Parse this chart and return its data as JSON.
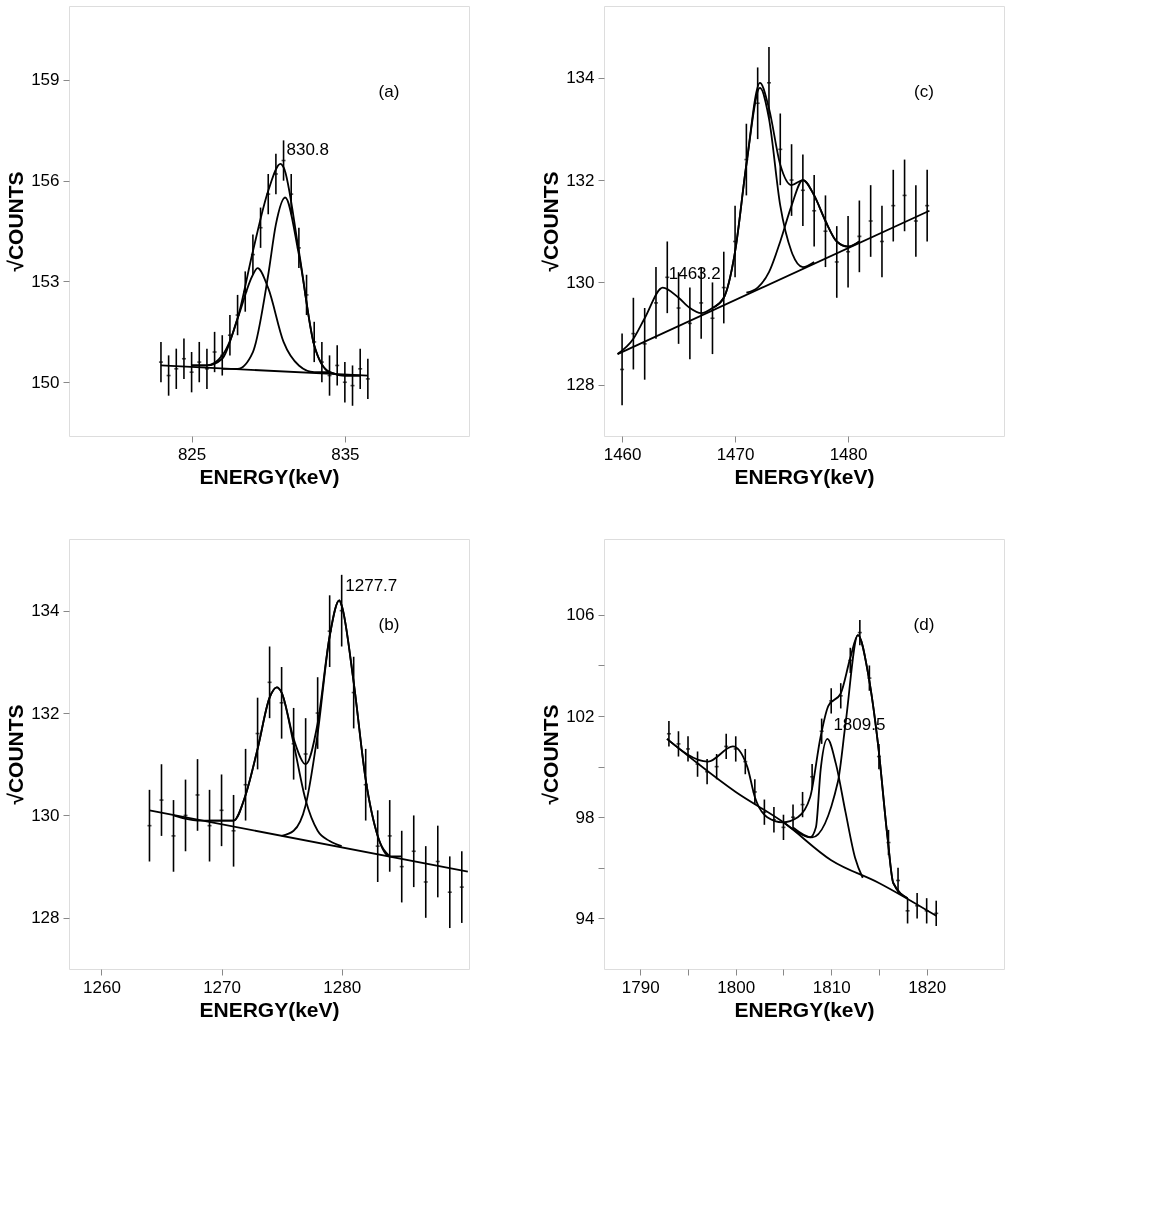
{
  "chart_data": [
    {
      "type": "line",
      "xlabel": "ENERGY(keV)",
      "ylabel": "√COUNTS",
      "xlim": [
        817.0,
        843.1
      ],
      "ylim": [
        148.4,
        161.2
      ],
      "xticks": [
        825,
        835
      ],
      "yticks": [
        150,
        153,
        156,
        159
      ],
      "grid": false,
      "line_style": "solid",
      "annotations": [
        "(a)",
        {
          "text": "830.8",
          "x": 830.8,
          "y": 156.5
        }
      ],
      "series": [
        {
          "type": "scatter",
          "color": "#000000",
          "x": [
            823,
            823.5,
            824,
            824.5,
            825,
            825.5,
            826,
            826.5,
            827,
            827.5,
            828,
            828.5,
            829,
            829.5,
            830,
            830.5,
            831,
            831.5,
            832,
            832.5,
            833,
            833.5,
            834,
            834.5,
            835,
            835.5,
            836,
            836.5
          ],
          "values": [
            150.6,
            150.2,
            150.4,
            150.7,
            150.3,
            150.6,
            150.4,
            150.9,
            150.8,
            151.4,
            152.0,
            152.7,
            153.8,
            154.6,
            155.6,
            156.2,
            156.6,
            155.6,
            154.0,
            152.6,
            151.2,
            150.6,
            150.2,
            150.5,
            150.0,
            149.9,
            150.4,
            150.1
          ],
          "errors": [
            0.6,
            0.6,
            0.6,
            0.6,
            0.6,
            0.6,
            0.6,
            0.6,
            0.6,
            0.6,
            0.6,
            0.6,
            0.6,
            0.6,
            0.6,
            0.6,
            0.6,
            0.6,
            0.6,
            0.6,
            0.6,
            0.6,
            0.6,
            0.6,
            0.6,
            0.6,
            0.6,
            0.6
          ]
        },
        {
          "color": "#000000",
          "x": [
            823,
            836.5
          ],
          "values": [
            150.5,
            150.2
          ]
        },
        {
          "color": "#000000",
          "x": [
            825,
            826,
            827,
            828,
            829,
            829.3,
            830,
            831,
            832,
            833,
            834
          ],
          "values": [
            150.5,
            150.5,
            150.7,
            151.9,
            153.2,
            153.4,
            152.8,
            151.2,
            150.5,
            150.3,
            150.3
          ]
        },
        {
          "color": "#000000",
          "x": [
            827,
            828,
            829,
            830,
            830.5,
            831.1,
            832,
            833,
            834,
            835,
            836
          ],
          "values": [
            150.4,
            150.4,
            150.9,
            153.2,
            154.7,
            155.5,
            153.8,
            151.1,
            150.3,
            150.2,
            150.2
          ]
        },
        {
          "color": "#000000",
          "x": [
            825,
            826,
            827,
            828,
            829,
            830,
            830.8,
            831,
            832,
            833,
            834,
            835,
            836
          ],
          "values": [
            150.5,
            150.5,
            150.8,
            151.9,
            153.9,
            155.7,
            156.5,
            156.4,
            153.9,
            151.1,
            150.3,
            150.2,
            150.2
          ]
        }
      ]
    },
    {
      "type": "line",
      "xlabel": "ENERGY(keV)",
      "ylabel": "√COUNTS",
      "xlim": [
        1458.4,
        1493.8
      ],
      "ylim": [
        127.0,
        135.4
      ],
      "xticks": [
        1460,
        1470,
        1480
      ],
      "yticks": [
        128,
        130,
        132,
        134
      ],
      "grid": false,
      "line_style": "solid",
      "annotations": [
        "(c)",
        {
          "text": "1463.2",
          "x": 1463.6,
          "y": 129.9
        }
      ],
      "series": [
        {
          "type": "scatter",
          "color": "#000000",
          "x": [
            1460,
            1461,
            1462,
            1463,
            1464,
            1465,
            1466,
            1467,
            1468,
            1469,
            1470,
            1471,
            1472,
            1473,
            1474,
            1475,
            1476,
            1477,
            1478,
            1479,
            1480,
            1481,
            1482,
            1483,
            1484,
            1485,
            1486,
            1487
          ],
          "values": [
            128.3,
            129.0,
            128.8,
            129.6,
            130.1,
            129.5,
            129.2,
            129.6,
            129.3,
            129.9,
            130.8,
            132.4,
            133.5,
            133.9,
            132.6,
            132.0,
            131.8,
            131.4,
            131.0,
            130.4,
            130.6,
            130.9,
            131.2,
            130.8,
            131.5,
            131.7,
            131.2,
            131.5
          ],
          "errors": [
            0.7,
            0.7,
            0.7,
            0.7,
            0.7,
            0.7,
            0.7,
            0.7,
            0.7,
            0.7,
            0.7,
            0.7,
            0.7,
            0.7,
            0.7,
            0.7,
            0.7,
            0.7,
            0.7,
            0.7,
            0.7,
            0.7,
            0.7,
            0.7,
            0.7,
            0.7,
            0.7,
            0.7
          ]
        },
        {
          "color": "#000000",
          "x": [
            1459.6,
            1487.2
          ],
          "values": [
            128.6,
            131.4
          ]
        },
        {
          "color": "#000000",
          "x": [
            1468,
            1469,
            1470,
            1471,
            1472.2,
            1473,
            1474,
            1475,
            1476,
            1477
          ],
          "values": [
            129.5,
            129.7,
            130.6,
            132.3,
            133.8,
            133.2,
            131.5,
            130.6,
            130.3,
            130.4
          ]
        },
        {
          "color": "#000000",
          "x": [
            1471,
            1472,
            1473,
            1474,
            1475,
            1476,
            1477,
            1478,
            1479,
            1480,
            1481
          ],
          "values": [
            129.8,
            129.9,
            130.2,
            130.8,
            131.5,
            132.0,
            131.7,
            131.2,
            130.8,
            130.7,
            130.8
          ]
        },
        {
          "color": "#000000",
          "x": [
            1459.6,
            1461,
            1462,
            1463.6,
            1465,
            1466,
            1467,
            1468,
            1469,
            1470,
            1471,
            1472.2,
            1473,
            1474,
            1475,
            1476,
            1477,
            1478,
            1479,
            1480,
            1481
          ],
          "values": [
            128.6,
            128.9,
            129.3,
            129.9,
            129.7,
            129.5,
            129.4,
            129.5,
            129.7,
            130.6,
            132.3,
            133.9,
            133.4,
            132.3,
            131.9,
            132.0,
            131.7,
            131.2,
            130.8,
            130.7,
            130.8
          ]
        }
      ]
    },
    {
      "type": "line",
      "xlabel": "ENERGY(keV)",
      "ylabel": "√COUNTS",
      "xlim": [
        1257.3,
        1290.6
      ],
      "ylim": [
        127.0,
        135.4
      ],
      "xticks": [
        1260,
        1270,
        1280
      ],
      "yticks": [
        128,
        130,
        132,
        134
      ],
      "grid": false,
      "line_style": "solid",
      "annotations": [
        "(b)",
        {
          "text": "1277.7",
          "x": 1279.8,
          "y": 134.2
        }
      ],
      "series": [
        {
          "type": "scatter",
          "color": "#000000",
          "x": [
            1264,
            1265,
            1266,
            1267,
            1268,
            1269,
            1270,
            1271,
            1272,
            1273,
            1274,
            1275,
            1276,
            1277,
            1278,
            1279,
            1280,
            1281,
            1282,
            1283,
            1284,
            1285,
            1286,
            1287,
            1288,
            1289,
            1290
          ],
          "values": [
            129.8,
            130.3,
            129.6,
            130.0,
            130.4,
            129.8,
            130.1,
            129.7,
            130.6,
            131.6,
            132.6,
            132.2,
            131.4,
            131.2,
            132.0,
            133.6,
            134.0,
            132.4,
            130.6,
            129.4,
            129.6,
            129.0,
            129.3,
            128.7,
            129.1,
            128.5,
            128.6
          ],
          "errors": [
            0.7,
            0.7,
            0.7,
            0.7,
            0.7,
            0.7,
            0.7,
            0.7,
            0.7,
            0.7,
            0.7,
            0.7,
            0.7,
            0.7,
            0.7,
            0.7,
            0.7,
            0.7,
            0.7,
            0.7,
            0.7,
            0.7,
            0.7,
            0.7,
            0.7,
            0.7,
            0.7
          ]
        },
        {
          "color": "#000000",
          "x": [
            1264,
            1290.5
          ],
          "values": [
            130.1,
            128.9
          ]
        },
        {
          "color": "#000000",
          "x": [
            1269,
            1270,
            1271,
            1272,
            1273,
            1274,
            1274.6,
            1275,
            1276,
            1277,
            1278,
            1279,
            1280
          ],
          "values": [
            129.9,
            129.9,
            129.9,
            130.4,
            131.3,
            132.3,
            132.5,
            132.4,
            131.4,
            130.3,
            129.7,
            129.5,
            129.4
          ]
        },
        {
          "color": "#000000",
          "x": [
            1275,
            1276,
            1277,
            1278,
            1279,
            1279.8,
            1280,
            1281,
            1282,
            1283,
            1284,
            1285
          ],
          "values": [
            129.6,
            129.7,
            130.2,
            131.6,
            133.5,
            134.2,
            134.1,
            132.6,
            130.7,
            129.6,
            129.2,
            129.2
          ]
        },
        {
          "color": "#000000",
          "x": [
            1266,
            1268,
            1270,
            1271,
            1272,
            1273,
            1274,
            1274.6,
            1275,
            1276,
            1277,
            1278,
            1279,
            1279.8,
            1280,
            1281,
            1282,
            1283,
            1284
          ],
          "values": [
            130.0,
            129.9,
            129.9,
            129.9,
            130.4,
            131.3,
            132.3,
            132.5,
            132.4,
            131.5,
            131.0,
            131.8,
            133.5,
            134.2,
            134.1,
            132.6,
            130.7,
            129.6,
            129.2
          ]
        }
      ]
    },
    {
      "type": "line",
      "xlabel": "ENERGY(keV)",
      "ylabel": "√COUNTS",
      "xlim": [
        1786.2,
        1828.1
      ],
      "ylim": [
        92.0,
        109.0
      ],
      "xticks": [
        1790,
        {
          "value": 1795,
          "label": null
        },
        1800,
        {
          "value": 1805,
          "label": null
        },
        1810,
        {
          "value": 1815,
          "label": null
        },
        1820
      ],
      "yticks": [
        94,
        {
          "value": 96,
          "label": null
        },
        98,
        {
          "value": 100,
          "label": null
        },
        102,
        {
          "value": 104,
          "label": null
        },
        106
      ],
      "grid": false,
      "line_style": "solid",
      "annotations": [
        "(d)",
        {
          "text": "1809.5",
          "x": 1809.6,
          "y": 101.1
        }
      ],
      "series": [
        {
          "type": "scatter",
          "color": "#000000",
          "x": [
            1793,
            1794,
            1795,
            1796,
            1797,
            1798,
            1799,
            1800,
            1801,
            1802,
            1803,
            1804,
            1805,
            1806,
            1807,
            1808,
            1809,
            1810,
            1811,
            1812,
            1813,
            1814,
            1815,
            1816,
            1817,
            1818,
            1819,
            1820,
            1821
          ],
          "values": [
            101.3,
            100.9,
            100.7,
            100.1,
            99.8,
            100.0,
            100.8,
            100.7,
            100.2,
            99.0,
            98.2,
            97.9,
            97.6,
            98.0,
            98.5,
            99.6,
            101.4,
            102.6,
            102.8,
            104.2,
            105.3,
            103.5,
            100.4,
            97.0,
            95.5,
            94.3,
            94.5,
            94.3,
            94.2
          ],
          "errors": [
            0.5,
            0.5,
            0.5,
            0.5,
            0.5,
            0.5,
            0.5,
            0.5,
            0.5,
            0.5,
            0.5,
            0.5,
            0.5,
            0.5,
            0.5,
            0.5,
            0.5,
            0.5,
            0.5,
            0.5,
            0.5,
            0.5,
            0.5,
            0.5,
            0.5,
            0.5,
            0.5,
            0.5,
            0.5
          ]
        },
        {
          "color": "#000000",
          "x": [
            1792.8,
            1800,
            1805,
            1810,
            1815,
            1821
          ],
          "values": [
            101.1,
            99.0,
            97.8,
            96.3,
            95.4,
            94.1
          ]
        },
        {
          "color": "#000000",
          "x": [
            1805,
            1806.5,
            1807.8,
            1808.4,
            1808.9,
            1809.6,
            1810.5,
            1811.5,
            1812.5,
            1813.3
          ],
          "values": [
            97.8,
            97.4,
            97.2,
            97.6,
            99.9,
            101.1,
            100.1,
            98.2,
            96.4,
            95.6
          ]
        },
        {
          "color": "#000000",
          "x": [
            1806,
            1808,
            1810.7,
            1811.5,
            1812.8,
            1813.9,
            1814.9,
            1815.9,
            1816.5,
            1818
          ],
          "values": [
            97.6,
            97.2,
            99.4,
            101.7,
            105.2,
            103.6,
            100.9,
            97.2,
            95.4,
            94.8
          ]
        },
        {
          "color": "#000000",
          "x": [
            1792.8,
            1797.1,
            1799.7,
            1801.2,
            1802.0,
            1803.3,
            1804.9,
            1806.5,
            1807.8,
            1808.9,
            1809.7,
            1811.0,
            1812.0,
            1812.8,
            1813.9,
            1814.9,
            1815.9,
            1816.5,
            1818
          ],
          "values": [
            101.1,
            100.2,
            100.8,
            100.0,
            98.8,
            98.0,
            97.8,
            98.0,
            98.8,
            101.2,
            102.4,
            102.9,
            104.3,
            105.2,
            103.6,
            100.9,
            97.2,
            95.4,
            94.8
          ]
        }
      ]
    }
  ]
}
